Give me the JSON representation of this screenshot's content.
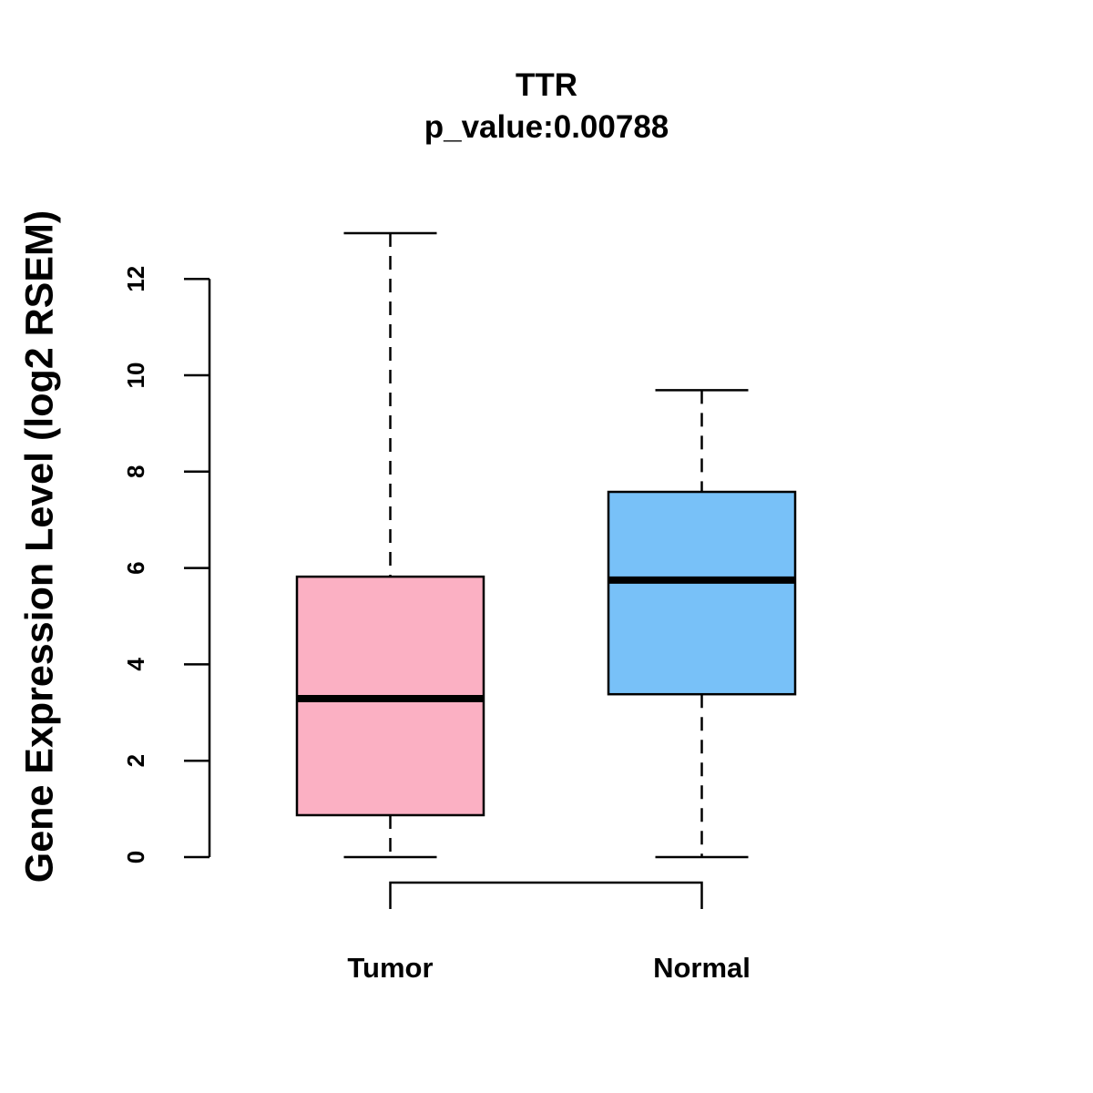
{
  "chart_data": {
    "type": "box",
    "title": "TTR",
    "subtitle": "p_value:0.00788",
    "xlabel": "",
    "ylabel": "Gene Expression Level (log2 RSEM)",
    "ylim": [
      0,
      12
    ],
    "yticks": [
      0,
      2,
      4,
      6,
      8,
      10,
      12
    ],
    "categories": [
      "Tumor",
      "Normal"
    ],
    "boxes": [
      {
        "name": "Tumor",
        "color": "#FBB0C3",
        "whisker_low": 0,
        "q1": 0.87,
        "median": 3.29,
        "q3": 5.82,
        "whisker_high": 12.95
      },
      {
        "name": "Normal",
        "color": "#78C1F8",
        "whisker_low": 0,
        "q1": 3.38,
        "median": 5.75,
        "q3": 7.58,
        "whisker_high": 9.69
      }
    ],
    "comparison_bracket": [
      "Tumor",
      "Normal"
    ]
  }
}
